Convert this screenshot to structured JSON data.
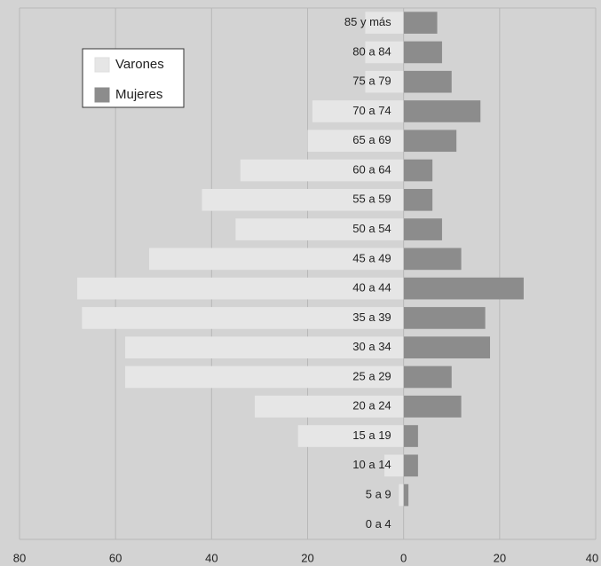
{
  "chart_data": {
    "type": "pyramid",
    "categories": [
      "85 y más",
      "80 a 84",
      "75 a 79",
      "70 a 74",
      "65 a 69",
      "60 a 64",
      "55 a 59",
      "50 a 54",
      "45 a 49",
      "40 a 44",
      "35 a 39",
      "30 a 34",
      "25 a 29",
      "20 a 24",
      "15 a 19",
      "10 a 14",
      "5 a 9",
      "0 a 4"
    ],
    "series": [
      {
        "name": "Varones",
        "color": "#e6e6e6",
        "side": "left",
        "values": [
          8,
          8,
          8,
          19,
          20,
          34,
          42,
          35,
          53,
          68,
          67,
          58,
          58,
          31,
          22,
          4,
          1,
          0
        ]
      },
      {
        "name": "Mujeres",
        "color": "#8c8c8c",
        "side": "right",
        "values": [
          7,
          8,
          10,
          16,
          11,
          6,
          6,
          8,
          12,
          25,
          17,
          18,
          10,
          12,
          3,
          3,
          1,
          0
        ]
      }
    ],
    "xlim": [
      -80,
      40
    ],
    "xticks": [
      {
        "value": -80,
        "label": "80"
      },
      {
        "value": -60,
        "label": "60"
      },
      {
        "value": -40,
        "label": "40"
      },
      {
        "value": -20,
        "label": "20"
      },
      0,
      20,
      40
    ],
    "grid": true,
    "legend": "upper-left"
  }
}
